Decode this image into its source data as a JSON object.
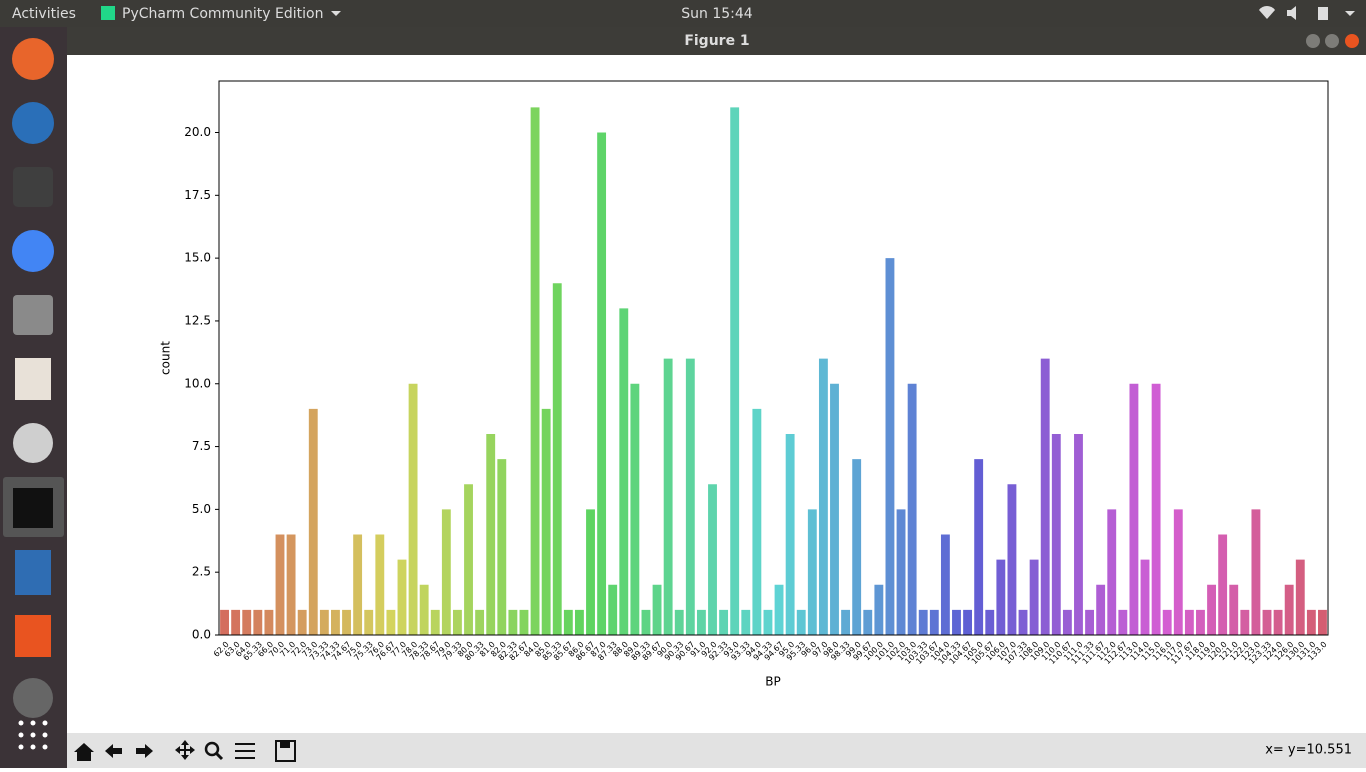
{
  "topbar": {
    "activities": "Activities",
    "app_name": "PyCharm Community Edition",
    "clock": "Sun 15:44"
  },
  "window": {
    "title": "Figure 1"
  },
  "toolbar": {
    "status": "x= y=10.551"
  },
  "chart_data": {
    "type": "bar",
    "x_label": "BP",
    "y_label": "count",
    "palette": "husl",
    "categories": [
      "62.0",
      "63.0",
      "64.0",
      "65.33",
      "66.0",
      "70.0",
      "71.0",
      "72.0",
      "73.0",
      "73.33",
      "74.33",
      "74.67",
      "75.0",
      "75.33",
      "76.0",
      "76.67",
      "77.0",
      "78.0",
      "78.33",
      "78.67",
      "79.0",
      "79.33",
      "80.0",
      "80.33",
      "81.0",
      "82.0",
      "82.33",
      "82.67",
      "84.0",
      "85.0",
      "85.33",
      "85.67",
      "86.0",
      "86.67",
      "87.0",
      "87.33",
      "88.0",
      "89.0",
      "89.33",
      "89.67",
      "90.0",
      "90.33",
      "90.67",
      "91.0",
      "92.0",
      "92.33",
      "93.0",
      "93.33",
      "94.0",
      "94.33",
      "94.67",
      "95.0",
      "95.33",
      "96.0",
      "97.0",
      "98.0",
      "98.33",
      "99.0",
      "99.67",
      "100.0",
      "101.0",
      "102.0",
      "103.0",
      "103.33",
      "103.67",
      "104.0",
      "104.33",
      "104.67",
      "105.0",
      "105.67",
      "106.0",
      "107.0",
      "107.33",
      "108.0",
      "109.0",
      "110.0",
      "110.67",
      "111.0",
      "111.33",
      "111.67",
      "112.0",
      "112.67",
      "113.0",
      "114.0",
      "115.0",
      "116.0",
      "117.0",
      "117.67",
      "118.0",
      "119.0",
      "120.0",
      "121.0",
      "122.0",
      "123.0",
      "123.33",
      "124.0",
      "126.0",
      "130.0",
      "131.0",
      "133.0"
    ],
    "values": [
      1,
      1,
      1,
      1,
      1,
      4,
      4,
      1,
      9,
      1,
      1,
      1,
      4,
      1,
      4,
      1,
      3,
      10,
      2,
      1,
      5,
      1,
      6,
      1,
      8,
      7,
      1,
      1,
      21,
      9,
      14,
      1,
      1,
      5,
      20,
      2,
      13,
      10,
      1,
      2,
      11,
      1,
      11,
      1,
      6,
      1,
      21,
      1,
      9,
      1,
      2,
      8,
      1,
      5,
      11,
      10,
      1,
      7,
      1,
      2,
      15,
      5,
      10,
      1,
      1,
      4,
      1,
      1,
      7,
      1,
      3,
      6,
      1,
      3,
      11,
      8,
      1,
      8,
      1,
      2,
      5,
      1,
      10,
      3,
      10,
      1,
      5,
      1,
      1,
      2,
      4,
      2,
      1,
      5,
      1,
      1,
      2,
      3,
      1,
      1
    ],
    "ylim": [
      0,
      22.05
    ],
    "yticks": [
      {
        "value": 0,
        "label": "0.0"
      },
      2.5,
      {
        "value": 5,
        "label": "5.0"
      },
      7.5,
      {
        "value": 10,
        "label": "10.0"
      },
      12.5,
      {
        "value": 15,
        "label": "15.0"
      },
      17.5,
      {
        "value": 20,
        "label": "20.0"
      }
    ]
  }
}
